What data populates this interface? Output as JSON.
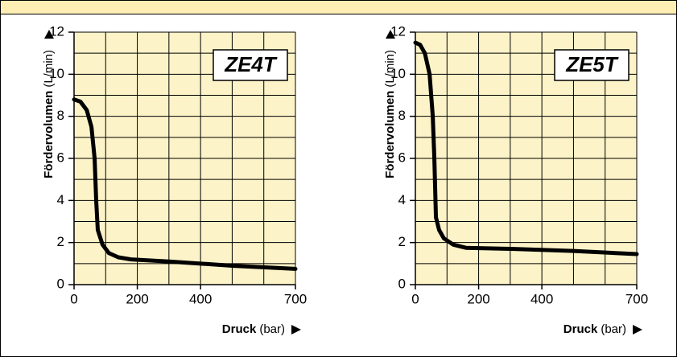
{
  "chart_data": [
    {
      "type": "line",
      "title": "ZE4T",
      "y_label": "Fördervolumen",
      "y_label_unit": "(L/min)",
      "x_label": "Druck",
      "x_label_unit": "(bar)",
      "x": [
        0,
        20,
        40,
        55,
        65,
        70,
        75,
        90,
        110,
        140,
        180,
        300,
        500,
        700
      ],
      "values": [
        8.8,
        8.7,
        8.3,
        7.5,
        6,
        4,
        2.6,
        1.9,
        1.5,
        1.3,
        1.2,
        1.1,
        0.9,
        0.75
      ],
      "color": "#000000",
      "xlim": [
        0,
        700
      ],
      "ylim": [
        0,
        12
      ],
      "xticks": [
        0,
        200,
        400,
        700
      ],
      "yticks": [
        0,
        2,
        4,
        6,
        8,
        10,
        12
      ],
      "xgrid": [
        100,
        200,
        300,
        400,
        500,
        600,
        700
      ],
      "ygrid": [
        1,
        2,
        3,
        4,
        5,
        6,
        7,
        8,
        9,
        10,
        11,
        12
      ]
    },
    {
      "type": "line",
      "title": "ZE5T",
      "y_label": "Fördervolumen",
      "y_label_unit": "(L/min)",
      "x_label": "Druck",
      "x_label_unit": "(bar)",
      "x": [
        0,
        15,
        30,
        45,
        55,
        60,
        65,
        75,
        90,
        120,
        160,
        300,
        500,
        700
      ],
      "values": [
        11.5,
        11.4,
        11,
        10,
        8,
        6,
        3.2,
        2.6,
        2.2,
        1.9,
        1.75,
        1.7,
        1.6,
        1.45
      ],
      "color": "#000000",
      "xlim": [
        0,
        700
      ],
      "ylim": [
        0,
        12
      ],
      "xticks": [
        0,
        200,
        400,
        700
      ],
      "yticks": [
        0,
        2,
        4,
        6,
        8,
        10,
        12
      ],
      "xgrid": [
        100,
        200,
        300,
        400,
        500,
        600,
        700
      ],
      "ygrid": [
        1,
        2,
        3,
        4,
        5,
        6,
        7,
        8,
        9,
        10,
        11,
        12
      ]
    }
  ]
}
